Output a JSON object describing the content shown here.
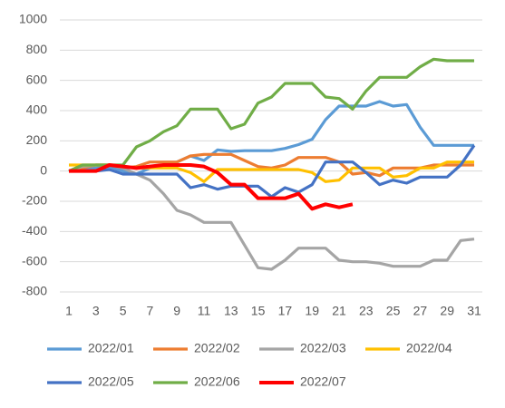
{
  "chart_data": {
    "type": "line",
    "x": [
      1,
      2,
      3,
      4,
      5,
      6,
      7,
      8,
      9,
      10,
      11,
      12,
      13,
      14,
      15,
      16,
      17,
      18,
      19,
      20,
      21,
      22,
      23,
      24,
      25,
      26,
      27,
      28,
      29,
      30,
      31
    ],
    "xlim": [
      1,
      31
    ],
    "xticks": [
      1,
      3,
      5,
      7,
      9,
      11,
      13,
      15,
      17,
      19,
      21,
      23,
      25,
      27,
      29,
      31
    ],
    "ylim": [
      -800,
      1000
    ],
    "yticks": [
      -800,
      -600,
      -400,
      -200,
      0,
      200,
      400,
      600,
      800,
      1000
    ],
    "grid": true,
    "legend": "bottom",
    "series": [
      {
        "name": "2022/01",
        "color": "#5B9BD5",
        "values": [
          0,
          10,
          20,
          30,
          0,
          -20,
          20,
          40,
          60,
          100,
          70,
          140,
          130,
          135,
          135,
          135,
          150,
          175,
          210,
          340,
          430,
          430,
          430,
          460,
          430,
          440,
          290,
          170,
          170,
          170,
          170
        ]
      },
      {
        "name": "2022/02",
        "color": "#ED7D31",
        "values": [
          0,
          20,
          40,
          40,
          20,
          30,
          60,
          60,
          60,
          100,
          110,
          110,
          110,
          70,
          30,
          20,
          40,
          90,
          90,
          90,
          60,
          -20,
          -10,
          -30,
          20,
          20,
          20,
          40,
          40,
          40,
          40
        ]
      },
      {
        "name": "2022/03",
        "color": "#A5A5A5",
        "values": [
          0,
          30,
          40,
          40,
          20,
          -20,
          -60,
          -150,
          -260,
          -290,
          -340,
          -340,
          -340,
          -490,
          -640,
          -650,
          -590,
          -510,
          -510,
          -510,
          -590,
          -600,
          -600,
          -610,
          -630,
          -630,
          -630,
          -590,
          -590,
          -460,
          -450
        ]
      },
      {
        "name": "2022/04",
        "color": "#FFC000",
        "values": [
          40,
          40,
          40,
          40,
          30,
          20,
          20,
          20,
          20,
          -10,
          -70,
          10,
          10,
          10,
          10,
          10,
          10,
          10,
          -10,
          -70,
          -60,
          20,
          20,
          20,
          -40,
          -30,
          20,
          20,
          60,
          60,
          60
        ]
      },
      {
        "name": "2022/05",
        "color": "#4472C4",
        "values": [
          0,
          0,
          0,
          10,
          -20,
          -20,
          -20,
          -20,
          -20,
          -110,
          -90,
          -120,
          -100,
          -100,
          -100,
          -170,
          -110,
          -140,
          -90,
          60,
          60,
          60,
          -10,
          -90,
          -60,
          -80,
          -40,
          -40,
          -40,
          40,
          170
        ]
      },
      {
        "name": "2022/06",
        "color": "#70AD47",
        "values": [
          0,
          40,
          40,
          40,
          40,
          160,
          200,
          260,
          300,
          410,
          410,
          410,
          280,
          310,
          450,
          490,
          580,
          580,
          580,
          490,
          480,
          410,
          530,
          620,
          620,
          620,
          690,
          740,
          730,
          730,
          730
        ]
      },
      {
        "name": "2022/07",
        "color": "#FF0000",
        "values": [
          0,
          0,
          0,
          40,
          30,
          20,
          30,
          40,
          40,
          40,
          30,
          -10,
          -90,
          -90,
          -180,
          -180,
          -180,
          -150,
          -250,
          -220,
          -240,
          -220,
          null,
          null,
          null,
          null,
          null,
          null,
          null,
          null,
          null
        ]
      }
    ]
  }
}
